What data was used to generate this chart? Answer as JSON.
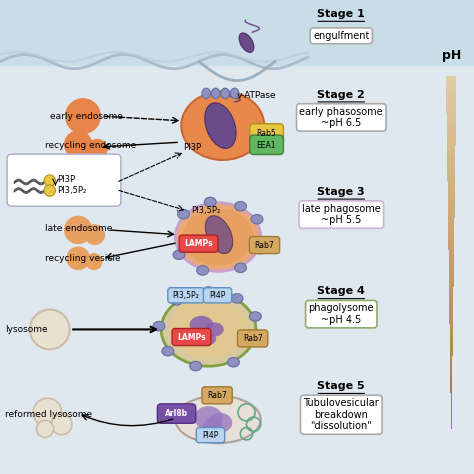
{
  "bg_color": "#dce8f0",
  "main_bg": "#e8eef5",
  "cell_bg": "#c8dde8",
  "stage1_label": "Stage 1",
  "stage1_desc": "engulfment",
  "stage2_label": "Stage 2",
  "stage2_desc": "early phasosome\n~pH 6.5",
  "stage2_border": "#aaaaaa",
  "stage3_label": "Stage 3",
  "stage3_desc": "late phagosome\n~pH 5.5",
  "stage3_border": "#c8b4d8",
  "stage4_label": "Stage 4",
  "stage4_desc": "phagolysome\n~pH 4.5",
  "stage4_border": "#8faa6f",
  "stage5_label": "Stage 5",
  "stage5_desc": "Tubulovesicular\nbreakdown\n\"dissolution\"",
  "stage5_border": "#aaaaaa",
  "orange_circle": "#e8834a",
  "orange_light": "#e8a060",
  "lysosome_fc": "#e8e0d0",
  "lysosome_ec": "#ccbbaa",
  "phagosome2_fc": "#e8884a",
  "phagosome2_ec": "#cc6630",
  "bacterium_fc": "#6b4c8a",
  "bacterium_ec": "#4a3060",
  "bump_fc": "#9090c0",
  "bump_ec": "#6070a0",
  "rab5_fc": "#e8c840",
  "rab5_ec": "#b09020",
  "eea1_fc": "#60b860",
  "eea1_ec": "#408040",
  "lamps_fc": "#e84848",
  "lamps_ec": "#b02020",
  "rab7_fc": "#d4a860",
  "rab7_ec": "#a07830",
  "pi_box_fc": "#b8d4f0",
  "pi_box_ec": "#6090c0",
  "arl8b_fc": "#7850a8",
  "arl8b_ec": "#503080",
  "phagosome3_ec": "#c8a0d0",
  "phagosome4_ec": "#80a040",
  "teal_vesicle": "#60a888"
}
